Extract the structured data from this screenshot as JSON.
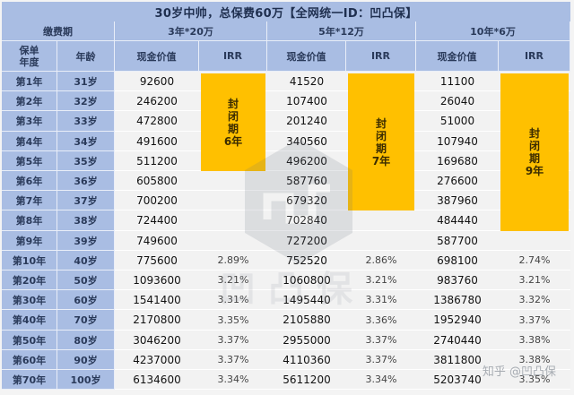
{
  "title": "30岁中帅，总保费60万【全网统一ID：凹凸保】",
  "header": {
    "payment_period_label": "缴费期",
    "policy_year_label": "保单\n年度",
    "age_label": "年龄",
    "plans": [
      {
        "name": "3年*20万",
        "cash_label": "现金价值",
        "irr_label": "IRR",
        "lock_text": [
          "封",
          "闭",
          "期",
          "6年"
        ]
      },
      {
        "name": "5年*12万",
        "cash_label": "现金价值",
        "irr_label": "IRR",
        "lock_text": [
          "封",
          "闭",
          "期",
          "7年"
        ]
      },
      {
        "name": "10年*6万",
        "cash_label": "现金价值",
        "irr_label": "IRR",
        "lock_text": [
          "封",
          "闭",
          "期",
          "9年"
        ]
      }
    ]
  },
  "rows": [
    {
      "year": "第1年",
      "age": "31岁",
      "v": [
        "92600",
        "",
        "41520",
        "",
        "11100",
        ""
      ]
    },
    {
      "year": "第2年",
      "age": "32岁",
      "v": [
        "246200",
        "",
        "107400",
        "",
        "26040",
        ""
      ]
    },
    {
      "year": "第3年",
      "age": "33岁",
      "v": [
        "472800",
        "",
        "201240",
        "",
        "51000",
        ""
      ]
    },
    {
      "year": "第4年",
      "age": "34岁",
      "v": [
        "491600",
        "",
        "340560",
        "",
        "107940",
        ""
      ]
    },
    {
      "year": "第5年",
      "age": "35岁",
      "v": [
        "511200",
        "",
        "496200",
        "",
        "169680",
        ""
      ]
    },
    {
      "year": "第6年",
      "age": "36岁",
      "v": [
        "605800",
        "",
        "587760",
        "",
        "276600",
        ""
      ]
    },
    {
      "year": "第7年",
      "age": "37岁",
      "v": [
        "700200",
        "",
        "679320",
        "",
        "387960",
        ""
      ]
    },
    {
      "year": "第8年",
      "age": "38岁",
      "v": [
        "724400",
        "",
        "702840",
        "",
        "484440",
        ""
      ]
    },
    {
      "year": "第9年",
      "age": "39岁",
      "v": [
        "749600",
        "",
        "727200",
        "",
        "587700",
        ""
      ]
    },
    {
      "year": "第10年",
      "age": "40岁",
      "v": [
        "775600",
        "2.89%",
        "752520",
        "2.86%",
        "698100",
        "2.74%"
      ]
    },
    {
      "year": "第20年",
      "age": "50岁",
      "v": [
        "1093600",
        "3.21%",
        "1060800",
        "3.21%",
        "983760",
        "3.21%"
      ]
    },
    {
      "year": "第30年",
      "age": "60岁",
      "v": [
        "1541400",
        "3.31%",
        "1495440",
        "3.31%",
        "1386780",
        "3.32%"
      ]
    },
    {
      "year": "第40年",
      "age": "70岁",
      "v": [
        "2170800",
        "3.35%",
        "2105880",
        "3.36%",
        "1952940",
        "3.37%"
      ]
    },
    {
      "year": "第50年",
      "age": "80岁",
      "v": [
        "3046200",
        "3.37%",
        "2955000",
        "3.37%",
        "2740440",
        "3.38%"
      ]
    },
    {
      "year": "第60年",
      "age": "90岁",
      "v": [
        "4237000",
        "3.37%",
        "4110360",
        "3.37%",
        "3811800",
        "3.38%"
      ]
    },
    {
      "year": "第70年",
      "age": "100岁",
      "v": [
        "6134600",
        "3.34%",
        "5611200",
        "3.34%",
        "5203740",
        "3.35%"
      ]
    }
  ],
  "watermark": {
    "brand": "凹凸保",
    "zhihu": "知乎 @凹凸保"
  },
  "colors": {
    "header_bg": "#a9bde3",
    "lock_bg": "#ffc000",
    "cell_bg": "#f2f2f2"
  }
}
